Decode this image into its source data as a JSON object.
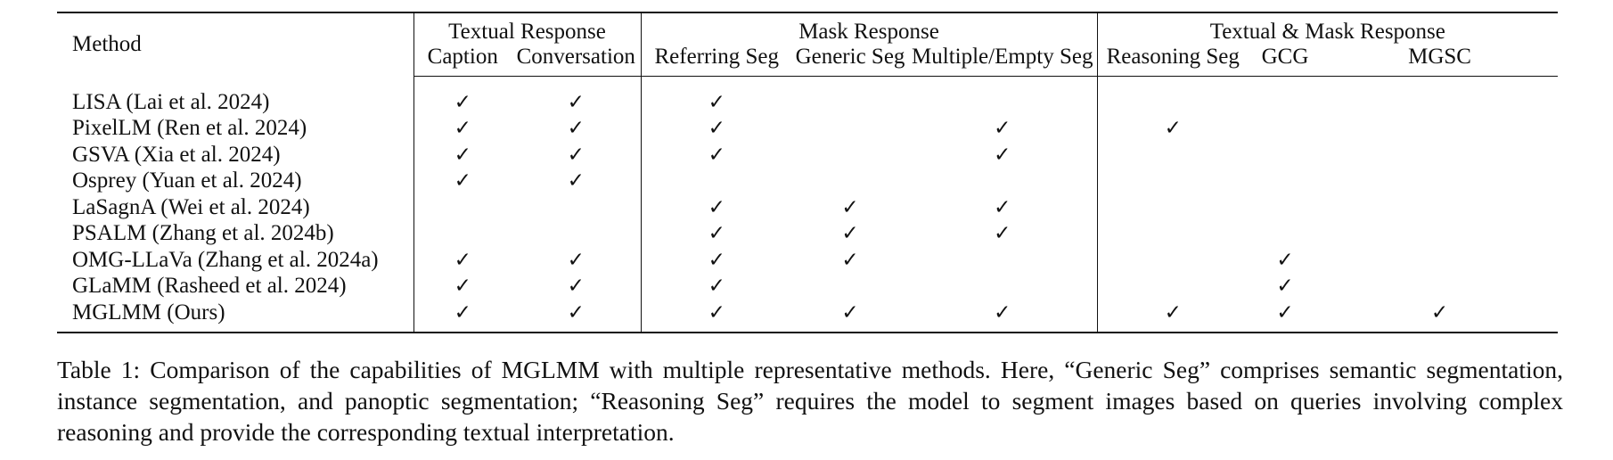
{
  "table": {
    "method_header": "Method",
    "groups": [
      {
        "label": "Textual Response",
        "columns": [
          "Caption",
          "Conversation"
        ]
      },
      {
        "label": "Mask Response",
        "columns": [
          "Referring Seg",
          "Generic Seg",
          "Multiple/Empty Seg"
        ]
      },
      {
        "label": "Textual & Mask Response",
        "columns": [
          "Reasoning Seg",
          "GCG",
          "MGSC"
        ]
      }
    ],
    "check_symbol": "✓",
    "rows": [
      {
        "method": "LISA (Lai et al. 2024)",
        "checks": [
          true,
          true,
          true,
          false,
          false,
          false,
          false,
          false
        ]
      },
      {
        "method": "PixelLM (Ren et al. 2024)",
        "checks": [
          true,
          true,
          true,
          false,
          true,
          true,
          false,
          false
        ]
      },
      {
        "method": "GSVA (Xia et al. 2024)",
        "checks": [
          true,
          true,
          true,
          false,
          true,
          false,
          false,
          false
        ]
      },
      {
        "method": "Osprey (Yuan et al. 2024)",
        "checks": [
          true,
          true,
          false,
          false,
          false,
          false,
          false,
          false
        ]
      },
      {
        "method": "LaSagnA (Wei et al. 2024)",
        "checks": [
          false,
          false,
          true,
          true,
          true,
          false,
          false,
          false
        ]
      },
      {
        "method": "PSALM (Zhang et al. 2024b)",
        "checks": [
          false,
          false,
          true,
          true,
          true,
          false,
          false,
          false
        ]
      },
      {
        "method": "OMG-LLaVa (Zhang et al. 2024a)",
        "checks": [
          true,
          true,
          true,
          true,
          false,
          false,
          true,
          false
        ]
      },
      {
        "method": "GLaMM (Rasheed et al. 2024)",
        "checks": [
          true,
          true,
          true,
          false,
          false,
          false,
          true,
          false
        ]
      },
      {
        "method": "MGLMM (Ours)",
        "checks": [
          true,
          true,
          true,
          true,
          true,
          true,
          true,
          true
        ]
      }
    ]
  },
  "caption": {
    "label": "Table 1:",
    "text": " Comparison of the capabilities of MGLMM with multiple representative methods. Here, “Generic Seg” comprises semantic segmentation, instance segmentation, and panoptic segmentation; “Reasoning Seg” requires the model to segment images based on queries involving complex reasoning and provide the corresponding textual interpretation."
  }
}
